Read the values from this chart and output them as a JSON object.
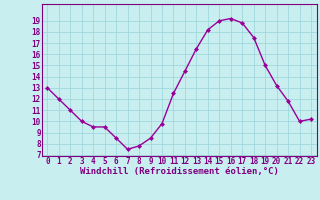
{
  "x": [
    0,
    1,
    2,
    3,
    4,
    5,
    6,
    7,
    8,
    9,
    10,
    11,
    12,
    13,
    14,
    15,
    16,
    17,
    18,
    19,
    20,
    21,
    22,
    23
  ],
  "y": [
    13,
    12,
    11,
    10,
    9.5,
    9.5,
    8.5,
    7.5,
    7.8,
    8.5,
    9.8,
    12.5,
    14.5,
    16.5,
    18.2,
    19.0,
    19.2,
    18.8,
    17.5,
    15.0,
    13.2,
    11.8,
    10.0,
    10.2
  ],
  "line_color": "#990099",
  "marker": "D",
  "marker_size": 2.0,
  "bg_color": "#c8eef0",
  "grid_color": "#a0d8dc",
  "xlabel": "Windchill (Refroidissement éolien,°C)",
  "xlabel_color": "#800080",
  "tick_color": "#800080",
  "spine_color": "#800080",
  "ylim_min": 7,
  "ylim_max": 20,
  "xlim_min": -0.5,
  "xlim_max": 23.5,
  "yticks": [
    7,
    8,
    9,
    10,
    11,
    12,
    13,
    14,
    15,
    16,
    17,
    18,
    19
  ],
  "xticks": [
    0,
    1,
    2,
    3,
    4,
    5,
    6,
    7,
    8,
    9,
    10,
    11,
    12,
    13,
    14,
    15,
    16,
    17,
    18,
    19,
    20,
    21,
    22,
    23
  ],
  "xlabel_fontsize": 6.5,
  "tick_fontsize": 5.5,
  "linewidth": 1.0
}
